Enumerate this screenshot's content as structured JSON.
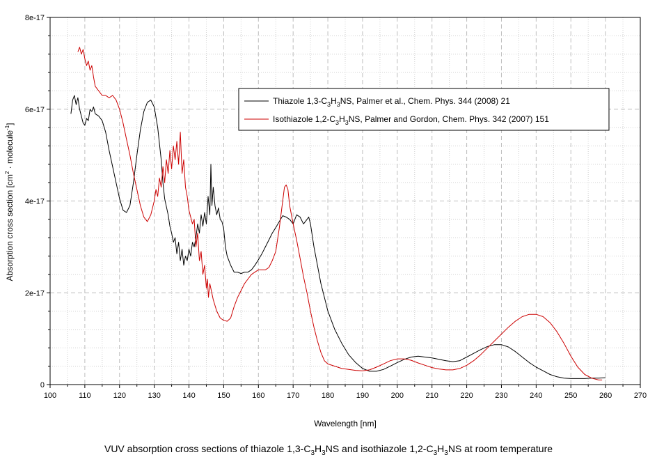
{
  "chart_data": {
    "type": "line",
    "xlabel": "Wavelength [nm]",
    "ylabel": {
      "pre": "Absorption cross section [cm",
      "sup1": "2",
      "mid": " · molecule",
      "sup2": "-1",
      "post": "]"
    },
    "xlim": [
      100,
      270
    ],
    "ylim": [
      0,
      8e-17
    ],
    "x_ticks": [
      100,
      110,
      120,
      130,
      140,
      150,
      160,
      170,
      180,
      190,
      200,
      210,
      220,
      230,
      240,
      250,
      260,
      270
    ],
    "y_ticks": [
      {
        "value": 0,
        "label": "0"
      },
      {
        "value": 2e-17,
        "label": "2e-17"
      },
      {
        "value": 4e-17,
        "label": "4e-17"
      },
      {
        "value": 6e-17,
        "label": "6e-17"
      },
      {
        "value": 8e-17,
        "label": "8e-17"
      }
    ],
    "grid": true,
    "legend_position": "top-right",
    "series": [
      {
        "name": {
          "a": "Thiazole 1,3-C",
          "s1": "3",
          "b": "H",
          "s2": "3",
          "c": "NS, Palmer et al., Chem. Phys. 344 (2008) 21"
        },
        "color": "#000000",
        "points": [
          [
            106,
            5.9e-17
          ],
          [
            106.5,
            6.2e-17
          ],
          [
            107,
            6.3e-17
          ],
          [
            107.5,
            6.1e-17
          ],
          [
            108,
            6.25e-17
          ],
          [
            108.5,
            6e-17
          ],
          [
            109,
            5.85e-17
          ],
          [
            109.5,
            5.7e-17
          ],
          [
            110,
            5.65e-17
          ],
          [
            110.5,
            5.8e-17
          ],
          [
            111,
            5.75e-17
          ],
          [
            111.5,
            6e-17
          ],
          [
            112,
            5.95e-17
          ],
          [
            112.5,
            6.05e-17
          ],
          [
            113,
            5.9e-17
          ],
          [
            114,
            5.85e-17
          ],
          [
            115,
            5.75e-17
          ],
          [
            116,
            5.5e-17
          ],
          [
            117,
            5.1e-17
          ],
          [
            118,
            4.75e-17
          ],
          [
            119,
            4.4e-17
          ],
          [
            120,
            4.05e-17
          ],
          [
            121,
            3.8e-17
          ],
          [
            122,
            3.75e-17
          ],
          [
            123,
            3.9e-17
          ],
          [
            124,
            4.4e-17
          ],
          [
            125,
            5e-17
          ],
          [
            126,
            5.55e-17
          ],
          [
            127,
            5.95e-17
          ],
          [
            128,
            6.15e-17
          ],
          [
            129,
            6.2e-17
          ],
          [
            130,
            6.05e-17
          ],
          [
            131,
            5.6e-17
          ],
          [
            132,
            4.9e-17
          ],
          [
            132.5,
            4.4e-17
          ],
          [
            133,
            4.05e-17
          ],
          [
            134,
            3.7e-17
          ],
          [
            134.5,
            3.45e-17
          ],
          [
            135,
            3.3e-17
          ],
          [
            135.5,
            3.1e-17
          ],
          [
            136,
            3.2e-17
          ],
          [
            136.5,
            2.85e-17
          ],
          [
            137,
            3.1e-17
          ],
          [
            137.5,
            2.7e-17
          ],
          [
            138,
            2.95e-17
          ],
          [
            138.5,
            2.6e-17
          ],
          [
            139,
            2.8e-17
          ],
          [
            139.5,
            2.7e-17
          ],
          [
            140,
            2.95e-17
          ],
          [
            140.5,
            2.8e-17
          ],
          [
            141,
            3.1e-17
          ],
          [
            141.5,
            3e-17
          ],
          [
            142,
            3.2e-17
          ],
          [
            142.5,
            3.5e-17
          ],
          [
            143,
            3.3e-17
          ],
          [
            143.5,
            3.7e-17
          ],
          [
            144,
            3.45e-17
          ],
          [
            144.5,
            3.75e-17
          ],
          [
            145,
            3.5e-17
          ],
          [
            145.5,
            4.1e-17
          ],
          [
            146,
            3.7e-17
          ],
          [
            146.3,
            4.8e-17
          ],
          [
            146.6,
            3.9e-17
          ],
          [
            147,
            4.3e-17
          ],
          [
            147.5,
            3.9e-17
          ],
          [
            148,
            3.7e-17
          ],
          [
            148.5,
            3.85e-17
          ],
          [
            149,
            3.6e-17
          ],
          [
            149.5,
            3.55e-17
          ],
          [
            150,
            3.4e-17
          ],
          [
            150.5,
            3e-17
          ],
          [
            151,
            2.8e-17
          ],
          [
            152,
            2.6e-17
          ],
          [
            153,
            2.45e-17
          ],
          [
            154,
            2.45e-17
          ],
          [
            155,
            2.42e-17
          ],
          [
            156,
            2.45e-17
          ],
          [
            157,
            2.45e-17
          ],
          [
            158,
            2.5e-17
          ],
          [
            159,
            2.6e-17
          ],
          [
            160,
            2.72e-17
          ],
          [
            161,
            2.85e-17
          ],
          [
            162,
            3e-17
          ],
          [
            163,
            3.15e-17
          ],
          [
            164,
            3.3e-17
          ],
          [
            165,
            3.42e-17
          ],
          [
            166,
            3.55e-17
          ],
          [
            167,
            3.68e-17
          ],
          [
            168,
            3.65e-17
          ],
          [
            169,
            3.6e-17
          ],
          [
            170,
            3.5e-17
          ],
          [
            171,
            3.7e-17
          ],
          [
            172,
            3.65e-17
          ],
          [
            173,
            3.5e-17
          ],
          [
            174,
            3.6e-17
          ],
          [
            174.5,
            3.65e-17
          ],
          [
            175,
            3.5e-17
          ],
          [
            176,
            3e-17
          ],
          [
            177,
            2.6e-17
          ],
          [
            178,
            2.2e-17
          ],
          [
            179,
            1.9e-17
          ],
          [
            180,
            1.6e-17
          ],
          [
            182,
            1.2e-17
          ],
          [
            184,
            9e-18
          ],
          [
            186,
            6.5e-18
          ],
          [
            188,
            4.8e-18
          ],
          [
            190,
            3.5e-18
          ],
          [
            192,
            2.9e-18
          ],
          [
            194,
            2.9e-18
          ],
          [
            196,
            3.3e-18
          ],
          [
            198,
            4e-18
          ],
          [
            200,
            4.8e-18
          ],
          [
            202,
            5.5e-18
          ],
          [
            204,
            6e-18
          ],
          [
            206,
            6.2e-18
          ],
          [
            208,
            6e-18
          ],
          [
            210,
            5.8e-18
          ],
          [
            212,
            5.5e-18
          ],
          [
            214,
            5.2e-18
          ],
          [
            216,
            5e-18
          ],
          [
            218,
            5.2e-18
          ],
          [
            220,
            6e-18
          ],
          [
            222,
            6.8e-18
          ],
          [
            224,
            7.6e-18
          ],
          [
            226,
            8.3e-18
          ],
          [
            228,
            8.7e-18
          ],
          [
            230,
            8.7e-18
          ],
          [
            232,
            8.2e-18
          ],
          [
            234,
            7.2e-18
          ],
          [
            236,
            6e-18
          ],
          [
            238,
            4.8e-18
          ],
          [
            240,
            3.8e-18
          ],
          [
            242,
            3e-18
          ],
          [
            244,
            2.2e-18
          ],
          [
            246,
            1.7e-18
          ],
          [
            248,
            1.4e-18
          ],
          [
            250,
            1.3e-18
          ],
          [
            252,
            1.3e-18
          ],
          [
            254,
            1.3e-18
          ],
          [
            256,
            1.4e-18
          ],
          [
            258,
            1.4e-18
          ],
          [
            260,
            1.5e-18
          ]
        ]
      },
      {
        "name": {
          "a": "Isothiazole 1,2-C",
          "s1": "3",
          "b": "H",
          "s2": "3",
          "c": "NS, Palmer and Gordon, Chem. Phys. 342 (2007) 151"
        },
        "color": "#cc0000",
        "points": [
          [
            108,
            7.25e-17
          ],
          [
            108.5,
            7.35e-17
          ],
          [
            109,
            7.2e-17
          ],
          [
            109.5,
            7.3e-17
          ],
          [
            110,
            7.1e-17
          ],
          [
            110.5,
            6.95e-17
          ],
          [
            111,
            7.05e-17
          ],
          [
            111.5,
            6.85e-17
          ],
          [
            112,
            6.95e-17
          ],
          [
            112.5,
            6.7e-17
          ],
          [
            113,
            6.5e-17
          ],
          [
            114,
            6.4e-17
          ],
          [
            115,
            6.3e-17
          ],
          [
            116,
            6.3e-17
          ],
          [
            117,
            6.25e-17
          ],
          [
            118,
            6.3e-17
          ],
          [
            119,
            6.2e-17
          ],
          [
            120,
            6e-17
          ],
          [
            121,
            5.7e-17
          ],
          [
            122,
            5.35e-17
          ],
          [
            123,
            5e-17
          ],
          [
            124,
            4.6e-17
          ],
          [
            125,
            4.25e-17
          ],
          [
            126,
            3.9e-17
          ],
          [
            127,
            3.65e-17
          ],
          [
            128,
            3.55e-17
          ],
          [
            129,
            3.7e-17
          ],
          [
            130,
            4e-17
          ],
          [
            130.5,
            4.25e-17
          ],
          [
            131,
            4.1e-17
          ],
          [
            131.5,
            4.5e-17
          ],
          [
            132,
            4.3e-17
          ],
          [
            132.5,
            4.75e-17
          ],
          [
            133,
            4.4e-17
          ],
          [
            133.5,
            4.9e-17
          ],
          [
            134,
            4.6e-17
          ],
          [
            134.5,
            5.1e-17
          ],
          [
            135,
            4.7e-17
          ],
          [
            135.5,
            5.2e-17
          ],
          [
            136,
            4.9e-17
          ],
          [
            136.5,
            5.3e-17
          ],
          [
            137,
            4.8e-17
          ],
          [
            137.5,
            5.5e-17
          ],
          [
            138,
            4.6e-17
          ],
          [
            138.5,
            4.9e-17
          ],
          [
            139,
            4.3e-17
          ],
          [
            139.5,
            4.1e-17
          ],
          [
            140,
            3.8e-17
          ],
          [
            141,
            3.5e-17
          ],
          [
            141.5,
            3.6e-17
          ],
          [
            142,
            3e-17
          ],
          [
            142.5,
            3.3e-17
          ],
          [
            143,
            2.7e-17
          ],
          [
            143.5,
            2.9e-17
          ],
          [
            144,
            2.4e-17
          ],
          [
            144.5,
            2.6e-17
          ],
          [
            145,
            2.1e-17
          ],
          [
            145.3,
            2.3e-17
          ],
          [
            145.6,
            1.9e-17
          ],
          [
            146,
            2.2e-17
          ],
          [
            147,
            1.85e-17
          ],
          [
            148,
            1.6e-17
          ],
          [
            149,
            1.45e-17
          ],
          [
            150,
            1.4e-17
          ],
          [
            151,
            1.38e-17
          ],
          [
            152,
            1.45e-17
          ],
          [
            153,
            1.7e-17
          ],
          [
            154,
            1.9e-17
          ],
          [
            155,
            2.05e-17
          ],
          [
            156,
            2.2e-17
          ],
          [
            157,
            2.3e-17
          ],
          [
            158,
            2.4e-17
          ],
          [
            159,
            2.45e-17
          ],
          [
            160,
            2.5e-17
          ],
          [
            161,
            2.5e-17
          ],
          [
            162,
            2.5e-17
          ],
          [
            163,
            2.55e-17
          ],
          [
            164,
            2.7e-17
          ],
          [
            165,
            2.9e-17
          ],
          [
            166,
            3.4e-17
          ],
          [
            167,
            4e-17
          ],
          [
            167.5,
            4.3e-17
          ],
          [
            168,
            4.35e-17
          ],
          [
            168.5,
            4.25e-17
          ],
          [
            169,
            3.9e-17
          ],
          [
            170,
            3.5e-17
          ],
          [
            171,
            3.15e-17
          ],
          [
            172,
            2.75e-17
          ],
          [
            173,
            2.35e-17
          ],
          [
            174,
            2e-17
          ],
          [
            175,
            1.6e-17
          ],
          [
            176,
            1.25e-17
          ],
          [
            177,
            9.5e-18
          ],
          [
            178,
            7e-18
          ],
          [
            179,
            5.2e-18
          ],
          [
            180,
            4.5e-18
          ],
          [
            182,
            4e-18
          ],
          [
            184,
            3.5e-18
          ],
          [
            186,
            3.3e-18
          ],
          [
            188,
            3.1e-18
          ],
          [
            190,
            3e-18
          ],
          [
            192,
            3.2e-18
          ],
          [
            194,
            3.8e-18
          ],
          [
            196,
            4.5e-18
          ],
          [
            198,
            5.2e-18
          ],
          [
            200,
            5.6e-18
          ],
          [
            202,
            5.6e-18
          ],
          [
            204,
            5.3e-18
          ],
          [
            206,
            4.7e-18
          ],
          [
            208,
            4.2e-18
          ],
          [
            210,
            3.7e-18
          ],
          [
            212,
            3.4e-18
          ],
          [
            214,
            3.2e-18
          ],
          [
            216,
            3.2e-18
          ],
          [
            218,
            3.5e-18
          ],
          [
            220,
            4.2e-18
          ],
          [
            222,
            5.2e-18
          ],
          [
            224,
            6.5e-18
          ],
          [
            226,
            8e-18
          ],
          [
            228,
            9.5e-18
          ],
          [
            230,
            1.1e-17
          ],
          [
            232,
            1.25e-17
          ],
          [
            234,
            1.38e-17
          ],
          [
            236,
            1.48e-17
          ],
          [
            238,
            1.53e-17
          ],
          [
            240,
            1.53e-17
          ],
          [
            242,
            1.48e-17
          ],
          [
            244,
            1.35e-17
          ],
          [
            246,
            1.15e-17
          ],
          [
            248,
            9e-18
          ],
          [
            250,
            6.2e-18
          ],
          [
            252,
            3.8e-18
          ],
          [
            254,
            2.2e-18
          ],
          [
            256,
            1.4e-18
          ],
          [
            258,
            1e-18
          ],
          [
            259,
            1e-18
          ]
        ]
      }
    ]
  },
  "caption": {
    "a": "VUV absorption cross sections of thiazole 1,3-C",
    "s1": "3",
    "b": "H",
    "s2": "3",
    "c": "NS and isothiazole 1,2-C",
    "s3": "3",
    "d": "H",
    "s4": "3",
    "e": "NS at room temperature"
  }
}
